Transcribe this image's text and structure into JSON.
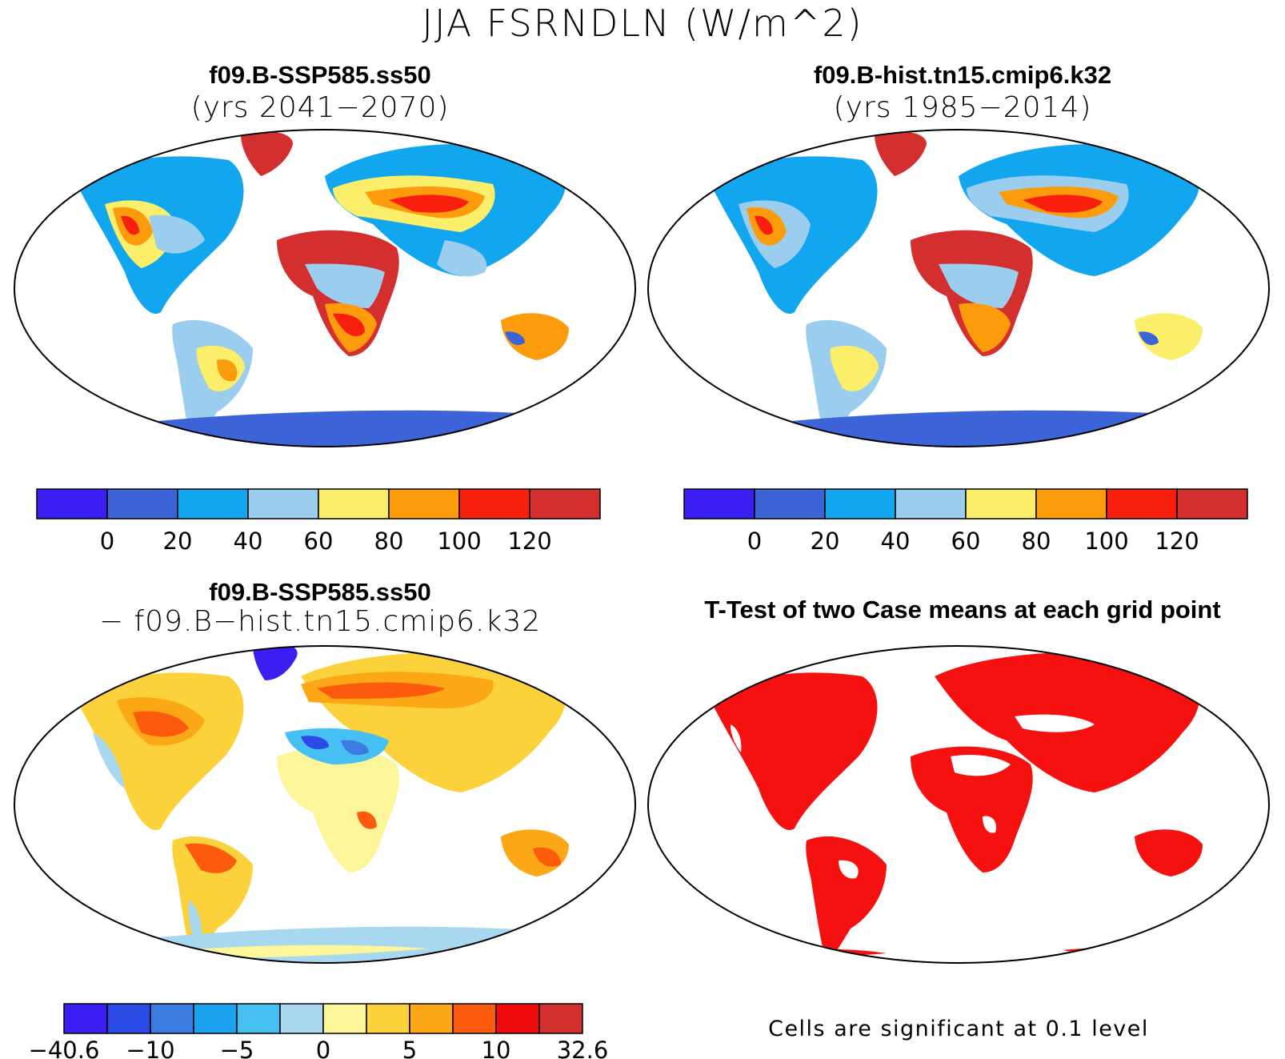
{
  "title": "JJA FSRNDLN (W/m^2)",
  "panels": [
    {
      "id": "case1",
      "title": "f09.B-SSP585.ss50",
      "subtitle": "(yrs 2041−2070)"
    },
    {
      "id": "case2",
      "title": "f09.B-hist.tn15.cmip6.k32",
      "subtitle": "(yrs 1985−2014)"
    },
    {
      "id": "diff",
      "title": "f09.B-SSP585.ss50",
      "subtitle": "− f09.B−hist.tn15.cmip6.k32"
    },
    {
      "id": "ttest",
      "title": "T-Test of two Case means at each grid point",
      "subtitle": ""
    }
  ],
  "colorbars": {
    "absolute": {
      "colors": [
        "#3a1ef2",
        "#3c63d8",
        "#12a6ef",
        "#9bcdef",
        "#fbee6a",
        "#fc9c0c",
        "#f8200c",
        "#d42f2f"
      ],
      "tick_labels": [
        "0",
        "20",
        "40",
        "60",
        "80",
        "100",
        "120"
      ]
    },
    "difference": {
      "colors": [
        "#3a1ef2",
        "#2c4be6",
        "#3c7be0",
        "#1aa2ee",
        "#46c0f2",
        "#a8d8ef",
        "#fcf59a",
        "#fcd23c",
        "#fca816",
        "#fc5a0c",
        "#ec0a0a",
        "#d42f2f"
      ],
      "tick_labels": [
        "−40.6",
        "−10",
        "−5",
        "0",
        "5",
        "10",
        "32.6"
      ]
    }
  },
  "significance_color": "#f4110f",
  "significance_note": "Cells are significant at 0.1 level"
}
